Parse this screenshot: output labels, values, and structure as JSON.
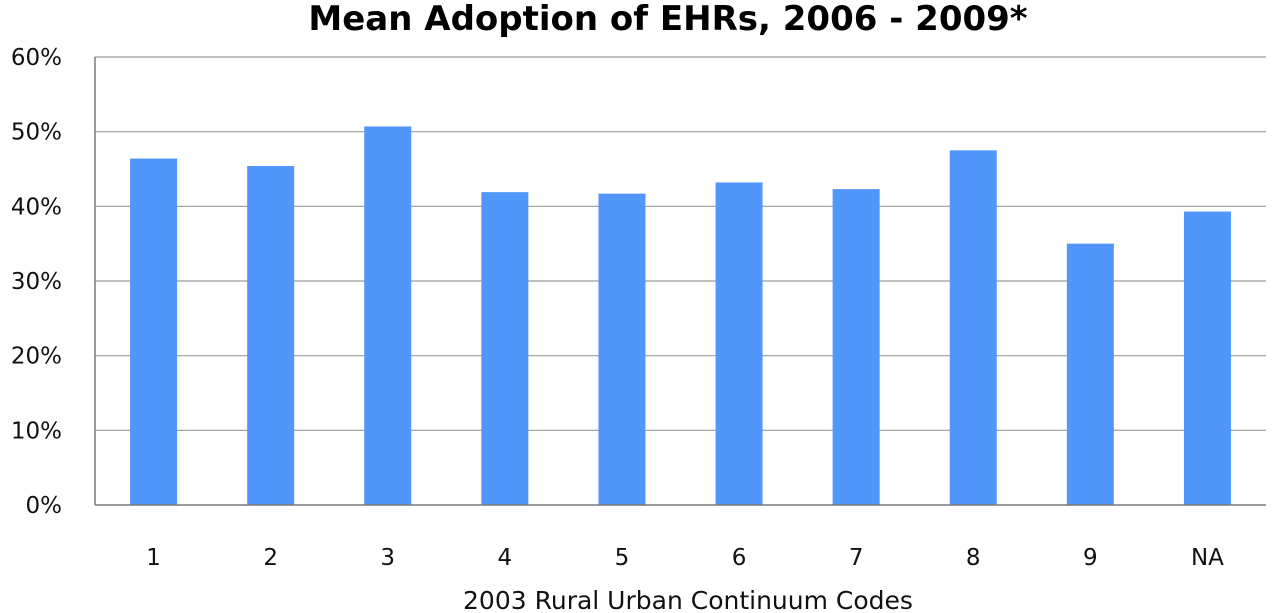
{
  "chart_data": {
    "type": "bar",
    "title": "Mean Adoption of EHRs, 2006 - 2009*",
    "xlabel": "2003 Rural Urban Continuum Codes",
    "ylabel": "",
    "categories": [
      "1",
      "2",
      "3",
      "4",
      "5",
      "6",
      "7",
      "8",
      "9",
      "NA"
    ],
    "values": [
      46.4,
      45.4,
      50.7,
      41.9,
      41.7,
      43.2,
      42.3,
      47.5,
      35.0,
      39.3
    ],
    "value_unit": "%",
    "ylim": [
      0,
      60
    ],
    "yticks": [
      {
        "value": 0,
        "label": "0%"
      },
      {
        "value": 10,
        "label": "10%"
      },
      {
        "value": 20,
        "label": "20%"
      },
      {
        "value": 30,
        "label": "30%"
      },
      {
        "value": 40,
        "label": "40%"
      },
      {
        "value": 50,
        "label": "50%"
      },
      {
        "value": 60,
        "label": "60%"
      }
    ],
    "grid": true,
    "legend": "none",
    "bar_color": "#5196fb",
    "grid_color": "#9a9a9a"
  }
}
